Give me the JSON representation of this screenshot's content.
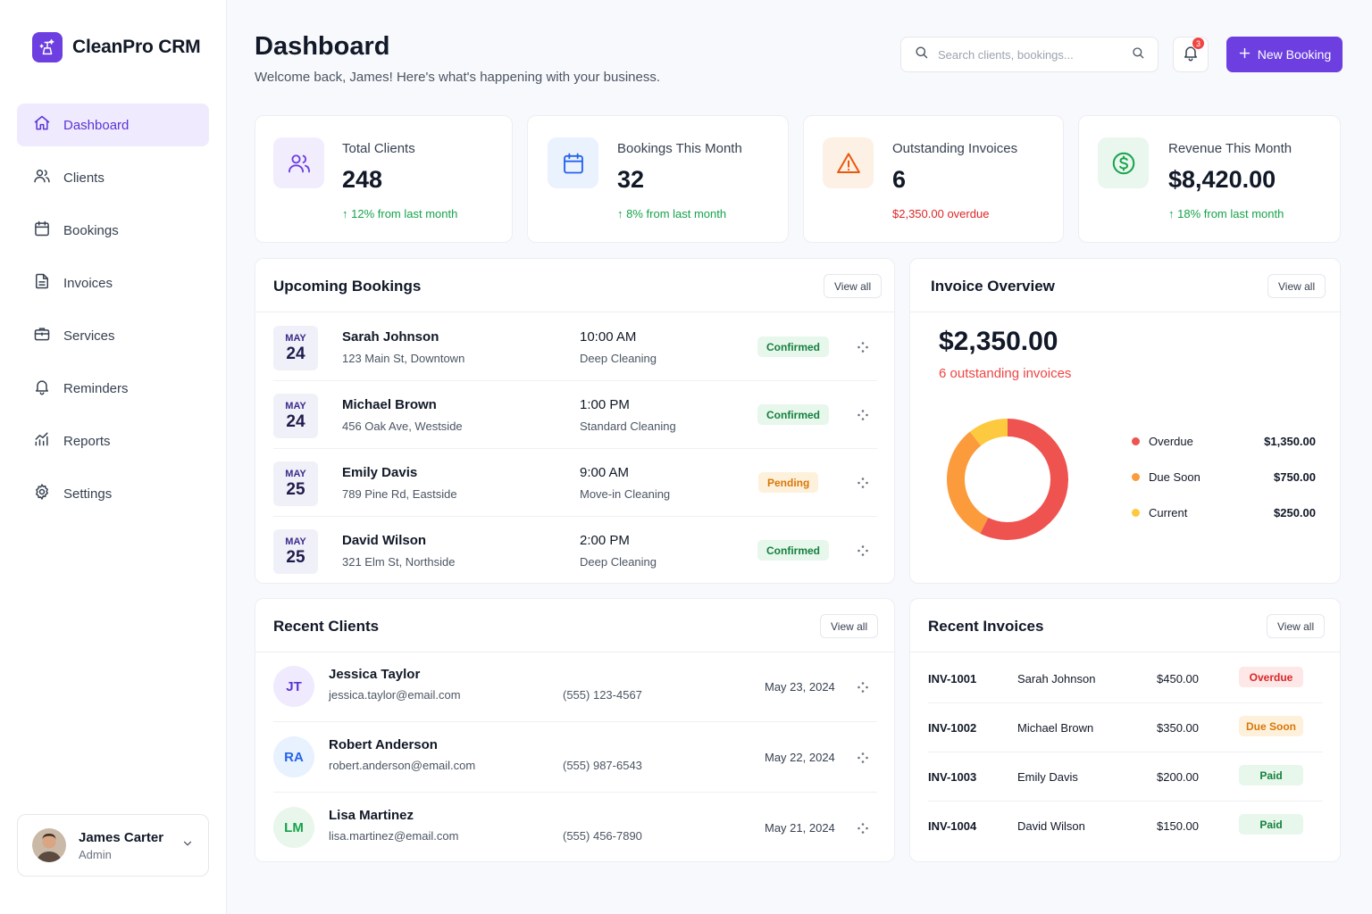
{
  "brand": {
    "name": "CleanPro CRM"
  },
  "nav": [
    {
      "label": "Dashboard",
      "icon": "home-icon",
      "active": true
    },
    {
      "label": "Clients",
      "icon": "users-icon"
    },
    {
      "label": "Bookings",
      "icon": "calendar-icon"
    },
    {
      "label": "Invoices",
      "icon": "document-icon"
    },
    {
      "label": "Services",
      "icon": "briefcase-icon"
    },
    {
      "label": "Reminders",
      "icon": "bell-icon"
    },
    {
      "label": "Reports",
      "icon": "chart-icon"
    },
    {
      "label": "Settings",
      "icon": "gear-icon"
    }
  ],
  "user": {
    "name": "James Carter",
    "role": "Admin"
  },
  "header": {
    "title": "Dashboard",
    "subtitle": "Welcome back, James! Here's what's happening with your business.",
    "search_placeholder": "Search clients, bookings...",
    "notification_count": "3",
    "new_booking_label": "New Booking"
  },
  "stats": [
    {
      "label": "Total Clients",
      "value": "248",
      "delta": "12% from last month",
      "trend": "up",
      "color": "#6d3fe0",
      "bg": "#f1edfd"
    },
    {
      "label": "Bookings This Month",
      "value": "32",
      "delta": "8% from last month",
      "trend": "up",
      "color": "#2563eb",
      "bg": "#eaf2fe"
    },
    {
      "label": "Outstanding Invoices",
      "value": "6",
      "delta": "$2,350.00 overdue",
      "trend": "overdue",
      "color": "#ea580c",
      "bg": "#fdf0e4"
    },
    {
      "label": "Revenue This Month",
      "value": "$8,420.00",
      "delta": "18% from last month",
      "trend": "up",
      "color": "#16a34a",
      "bg": "#e9f7ee"
    }
  ],
  "upcoming": {
    "title": "Upcoming Bookings",
    "view_all": "View all",
    "rows": [
      {
        "month": "MAY",
        "day": "24",
        "name": "Sarah Johnson",
        "address": "123 Main St, Downtown",
        "time": "10:00 AM",
        "service": "Deep Cleaning",
        "status": "Confirmed"
      },
      {
        "month": "MAY",
        "day": "24",
        "name": "Michael Brown",
        "address": "456 Oak Ave, Westside",
        "time": "1:00 PM",
        "service": "Standard Cleaning",
        "status": "Confirmed"
      },
      {
        "month": "MAY",
        "day": "25",
        "name": "Emily Davis",
        "address": "789 Pine Rd, Eastside",
        "time": "9:00 AM",
        "service": "Move-in Cleaning",
        "status": "Pending"
      },
      {
        "month": "MAY",
        "day": "25",
        "name": "David Wilson",
        "address": "321 Elm St, Northside",
        "time": "2:00 PM",
        "service": "Deep Cleaning",
        "status": "Confirmed"
      }
    ]
  },
  "invoice_overview": {
    "title": "Invoice Overview",
    "view_all": "View all",
    "amount": "$2,350.00",
    "count_text": "6 outstanding invoices",
    "segments": [
      {
        "label": "Overdue",
        "value": 1350,
        "display": "$1,350.00",
        "color": "#ef5350"
      },
      {
        "label": "Due Soon",
        "value": 750,
        "display": "$750.00",
        "color": "#fb9b3c"
      },
      {
        "label": "Current",
        "value": 250,
        "display": "$250.00",
        "color": "#fcc93f"
      }
    ]
  },
  "recent_clients": {
    "title": "Recent Clients",
    "view_all": "View all",
    "rows": [
      {
        "initials": "JT",
        "name": "Jessica Taylor",
        "email": "jessica.taylor@email.com",
        "phone": "(555) 123-4567",
        "date": "May 23, 2024",
        "color": "#5b34d6",
        "bg": "#efeafd"
      },
      {
        "initials": "RA",
        "name": "Robert Anderson",
        "email": "robert.anderson@email.com",
        "phone": "(555) 987-6543",
        "date": "May 22, 2024",
        "color": "#2563eb",
        "bg": "#e8f1fe"
      },
      {
        "initials": "LM",
        "name": "Lisa Martinez",
        "email": "lisa.martinez@email.com",
        "phone": "(555) 456-7890",
        "date": "May 21, 2024",
        "color": "#16a34a",
        "bg": "#e8f6ec"
      }
    ]
  },
  "recent_invoices": {
    "title": "Recent Invoices",
    "view_all": "View all",
    "rows": [
      {
        "id": "INV-1001",
        "client": "Sarah Johnson",
        "amount": "$450.00",
        "status": "Overdue"
      },
      {
        "id": "INV-1002",
        "client": "Michael Brown",
        "amount": "$350.00",
        "status": "Due Soon"
      },
      {
        "id": "INV-1003",
        "client": "Emily Davis",
        "amount": "$200.00",
        "status": "Paid"
      },
      {
        "id": "INV-1004",
        "client": "David Wilson",
        "amount": "$150.00",
        "status": "Paid"
      }
    ]
  }
}
